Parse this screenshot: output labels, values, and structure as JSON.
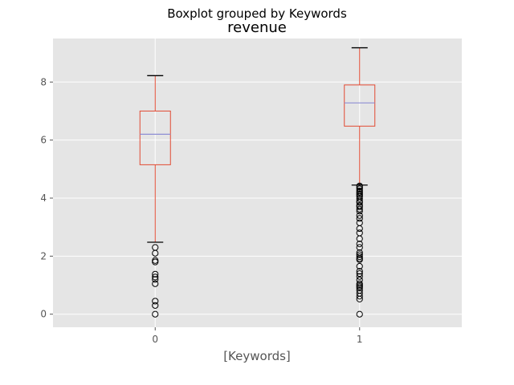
{
  "chart_data": {
    "type": "boxplot",
    "suptitle": "Boxplot grouped by Keywords",
    "title": "revenue",
    "xlabel": "[Keywords]",
    "ylabel": "",
    "categories": [
      "0",
      "1"
    ],
    "ylim": [
      -0.45,
      9.5
    ],
    "yticks": [
      0,
      2,
      4,
      6,
      8
    ],
    "grid": true,
    "style": "ggplot",
    "colors": {
      "background": "#e5e5e5",
      "grid": "#ffffff",
      "box": "#e24a33",
      "median": "#8e8ed4",
      "flier": "#000000",
      "cap": "#000000"
    },
    "boxes": [
      {
        "category": "0",
        "whisker_low": 2.48,
        "q1": 5.15,
        "median": 6.2,
        "q3": 7.0,
        "whisker_high": 8.22,
        "fliers": [
          2.3,
          2.1,
          1.85,
          1.8,
          1.38,
          1.28,
          1.2,
          1.05,
          0.45,
          0.3,
          0.0
        ]
      },
      {
        "category": "1",
        "whisker_low": 4.45,
        "q1": 6.48,
        "median": 7.28,
        "q3": 7.9,
        "whisker_high": 9.18,
        "fliers": [
          4.42,
          4.38,
          4.32,
          4.25,
          4.2,
          4.15,
          4.1,
          4.05,
          3.98,
          3.9,
          3.85,
          3.75,
          3.7,
          3.62,
          3.55,
          3.4,
          3.3,
          3.15,
          2.95,
          2.8,
          2.6,
          2.42,
          2.3,
          2.12,
          2.05,
          1.98,
          1.92,
          1.88,
          1.65,
          1.48,
          1.4,
          1.3,
          1.18,
          1.05,
          1.0,
          0.95,
          0.9,
          0.82,
          0.72,
          0.62,
          0.52,
          0.0
        ]
      }
    ]
  }
}
